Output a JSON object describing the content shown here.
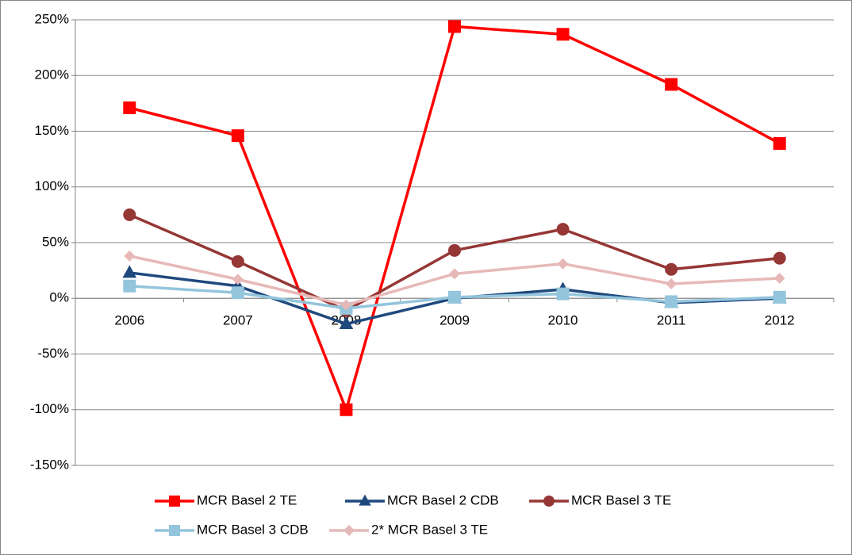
{
  "chart_data": {
    "type": "line",
    "categories": [
      "2006",
      "2007",
      "2008",
      "2009",
      "2010",
      "2011",
      "2012"
    ],
    "series": [
      {
        "name": "MCR Basel 2 TE",
        "color": "#ff0000",
        "marker": "square",
        "values": [
          171,
          146,
          -100,
          244,
          237,
          192,
          139
        ]
      },
      {
        "name": "MCR Basel 2 CDB",
        "color": "#1f497d",
        "marker": "triangle",
        "values": [
          23,
          11,
          -23,
          0,
          8,
          -4,
          0
        ]
      },
      {
        "name": "MCR Basel 3 TE",
        "color": "#953735",
        "marker": "circle",
        "values": [
          75,
          33,
          -11,
          43,
          62,
          26,
          36
        ]
      },
      {
        "name": "MCR Basel 3 CDB",
        "color": "#93c5dc",
        "marker": "square",
        "values": [
          11,
          5,
          -9,
          1,
          4,
          -3,
          1
        ]
      },
      {
        "name": "2* MCR Basel 3  TE",
        "color": "#e6b9b8",
        "marker": "diamond",
        "values": [
          38,
          17,
          -6,
          22,
          31,
          13,
          18
        ]
      }
    ],
    "ylim": [
      -150,
      250
    ],
    "yticks": [
      {
        "value": -150,
        "label": "-150%"
      },
      {
        "value": -100,
        "label": "-100%"
      },
      {
        "value": -50,
        "label": "-50%"
      },
      {
        "value": 0,
        "label": "0%"
      },
      {
        "value": 50,
        "label": "50%"
      },
      {
        "value": 100,
        "label": "100%"
      },
      {
        "value": 150,
        "label": "150%"
      },
      {
        "value": 200,
        "label": "200%"
      },
      {
        "value": 250,
        "label": "250%"
      }
    ],
    "grid": true,
    "legend": "bottom"
  }
}
